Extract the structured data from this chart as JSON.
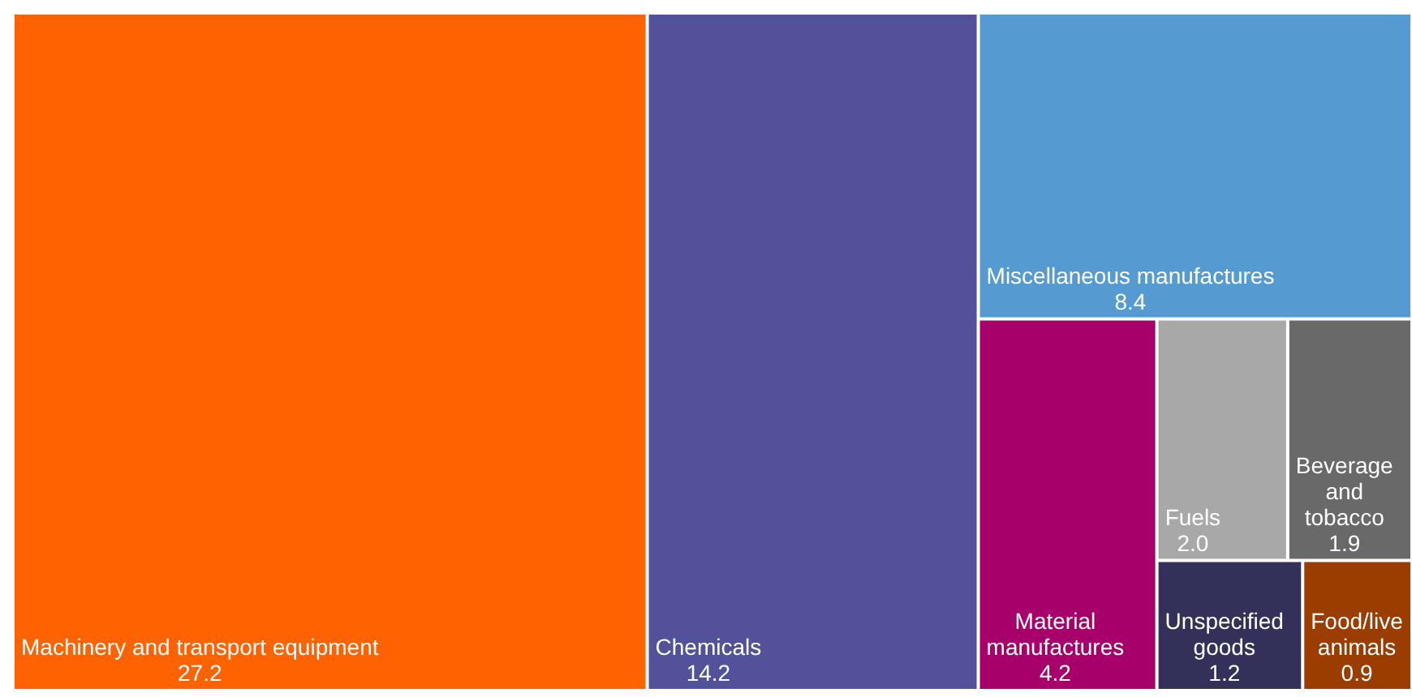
{
  "chart_data": {
    "type": "other",
    "categories": [
      "Machinery and transport equipment",
      "Chemicals",
      "Miscellaneous manufactures",
      "Material manufactures",
      "Fuels",
      "Beverage and tobacco",
      "Unspecified goods",
      "Food/live animals"
    ],
    "values": [
      27.2,
      14.2,
      8.4,
      4.2,
      2.0,
      1.9,
      1.2,
      0.9
    ],
    "value_labels": [
      "27.2",
      "14.2",
      "8.4",
      "4.2",
      "2.0",
      "1.9",
      "1.2",
      "0.9"
    ],
    "colors": [
      "#ff6200",
      "#52519a",
      "#559bd2",
      "#a8006b",
      "#a8a8a8",
      "#696969",
      "#33305a",
      "#9b3c00"
    ]
  }
}
